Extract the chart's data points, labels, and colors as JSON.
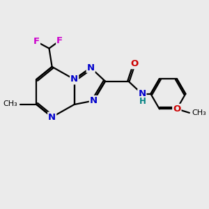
{
  "bg_color": "#ebebeb",
  "bond_color": "#000000",
  "n_color": "#0000cc",
  "o_color": "#cc0000",
  "f_color": "#cc00cc",
  "h_color": "#008080",
  "font_size": 9.5,
  "lw": 1.6,
  "xlim": [
    0,
    10
  ],
  "ylim": [
    0,
    10
  ]
}
